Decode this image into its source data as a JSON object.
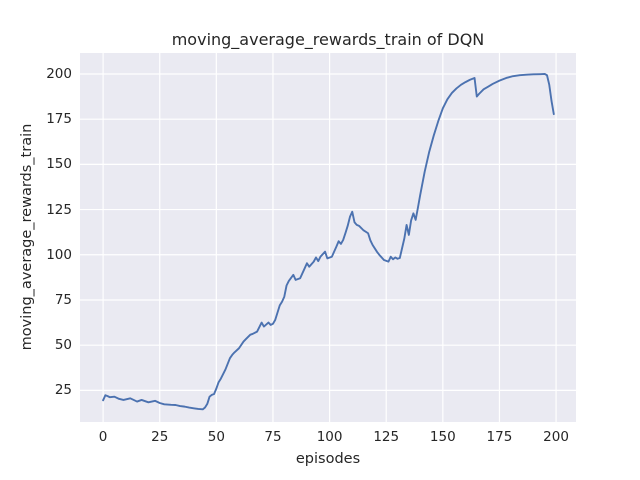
{
  "chart_data": {
    "type": "line",
    "title": "moving_average_rewards_train of DQN",
    "xlabel": "episodes",
    "ylabel": "moving_average_rewards_train",
    "x_ticks": [
      0,
      25,
      50,
      75,
      100,
      125,
      150,
      175,
      200
    ],
    "y_ticks": [
      25,
      50,
      75,
      100,
      125,
      150,
      175,
      200
    ],
    "xlim": [
      -10.2,
      208.8
    ],
    "ylim": [
      7.5,
      211.6
    ],
    "grid": true,
    "legend": false,
    "colors": {
      "line": "#4c72b0",
      "plot_bg": "#eaeaf2",
      "grid": "#ffffff",
      "text": "#262626",
      "figure_bg": "#ffffff"
    },
    "series": [
      {
        "name": "moving_average_rewards_train",
        "color": "#4c72b0",
        "points": [
          [
            0,
            19.5
          ],
          [
            1,
            22.3
          ],
          [
            2,
            21.8
          ],
          [
            3,
            21.2
          ],
          [
            5,
            21.5
          ],
          [
            7,
            20.3
          ],
          [
            9,
            19.7
          ],
          [
            12,
            20.6
          ],
          [
            15,
            18.8
          ],
          [
            17,
            19.7
          ],
          [
            20,
            18.4
          ],
          [
            23,
            19.2
          ],
          [
            25,
            18.0
          ],
          [
            27,
            17.3
          ],
          [
            30,
            17.0
          ],
          [
            32,
            16.9
          ],
          [
            34,
            16.3
          ],
          [
            36,
            16.0
          ],
          [
            38,
            15.5
          ],
          [
            40,
            15.1
          ],
          [
            42,
            14.7
          ],
          [
            44,
            14.5
          ],
          [
            45,
            15.5
          ],
          [
            46,
            17.5
          ],
          [
            47,
            21.5
          ],
          [
            48,
            22.5
          ],
          [
            49,
            23.0
          ],
          [
            50,
            26.0
          ],
          [
            51,
            29.5
          ],
          [
            52,
            31.5
          ],
          [
            54,
            36.5
          ],
          [
            56,
            42.8
          ],
          [
            57,
            44.6
          ],
          [
            58,
            46.0
          ],
          [
            60,
            48.3
          ],
          [
            62,
            52.0
          ],
          [
            63,
            53.3
          ],
          [
            65,
            55.8
          ],
          [
            66,
            56.2
          ],
          [
            68,
            57.5
          ],
          [
            70,
            62.5
          ],
          [
            71,
            60.3
          ],
          [
            73,
            62.5
          ],
          [
            74,
            61.2
          ],
          [
            75,
            61.8
          ],
          [
            76,
            64.0
          ],
          [
            77,
            68.0
          ],
          [
            78,
            72.0
          ],
          [
            79,
            74.0
          ],
          [
            80,
            76.8
          ],
          [
            81,
            83.0
          ],
          [
            82,
            85.5
          ],
          [
            84,
            88.9
          ],
          [
            85,
            86.1
          ],
          [
            87,
            87.0
          ],
          [
            89,
            92.5
          ],
          [
            90,
            95.3
          ],
          [
            91,
            93.4
          ],
          [
            93,
            96.2
          ],
          [
            94,
            98.5
          ],
          [
            95,
            96.5
          ],
          [
            96,
            99.0
          ],
          [
            98,
            101.7
          ],
          [
            99,
            98.0
          ],
          [
            101,
            98.9
          ],
          [
            103,
            104.5
          ],
          [
            104,
            107.5
          ],
          [
            105,
            106.0
          ],
          [
            106,
            108.2
          ],
          [
            107,
            112.0
          ],
          [
            108,
            116.0
          ],
          [
            109,
            121.0
          ],
          [
            110,
            123.8
          ],
          [
            111,
            118.0
          ],
          [
            112,
            116.5
          ],
          [
            113,
            116.0
          ],
          [
            115,
            113.5
          ],
          [
            117,
            111.9
          ],
          [
            118,
            108.0
          ],
          [
            119,
            105.4
          ],
          [
            121,
            101.5
          ],
          [
            122,
            99.9
          ],
          [
            124,
            97.1
          ],
          [
            126,
            96.2
          ],
          [
            127,
            98.9
          ],
          [
            128,
            97.5
          ],
          [
            129,
            98.5
          ],
          [
            130,
            97.8
          ],
          [
            131,
            98.2
          ],
          [
            132,
            103.6
          ],
          [
            133,
            109.0
          ],
          [
            134,
            116.5
          ],
          [
            135,
            111.0
          ],
          [
            136,
            119.0
          ],
          [
            137,
            122.9
          ],
          [
            138,
            119.3
          ],
          [
            139,
            126.0
          ],
          [
            140,
            133.0
          ],
          [
            142,
            146.0
          ],
          [
            144,
            157.0
          ],
          [
            146,
            166.0
          ],
          [
            148,
            174.0
          ],
          [
            150,
            181.0
          ],
          [
            152,
            186.0
          ],
          [
            154,
            189.5
          ],
          [
            156,
            192.0
          ],
          [
            158,
            194.0
          ],
          [
            160,
            195.5
          ],
          [
            162,
            196.8
          ],
          [
            164,
            197.8
          ],
          [
            165,
            187.5
          ],
          [
            166,
            189.0
          ],
          [
            168,
            191.5
          ],
          [
            170,
            193.0
          ],
          [
            172,
            194.5
          ],
          [
            175,
            196.3
          ],
          [
            178,
            197.8
          ],
          [
            181,
            198.8
          ],
          [
            184,
            199.3
          ],
          [
            187,
            199.6
          ],
          [
            190,
            199.8
          ],
          [
            193,
            199.9
          ],
          [
            195,
            200.0
          ],
          [
            196,
            199.3
          ],
          [
            197,
            194.0
          ],
          [
            198,
            185.0
          ],
          [
            199,
            177.8
          ]
        ]
      }
    ]
  }
}
